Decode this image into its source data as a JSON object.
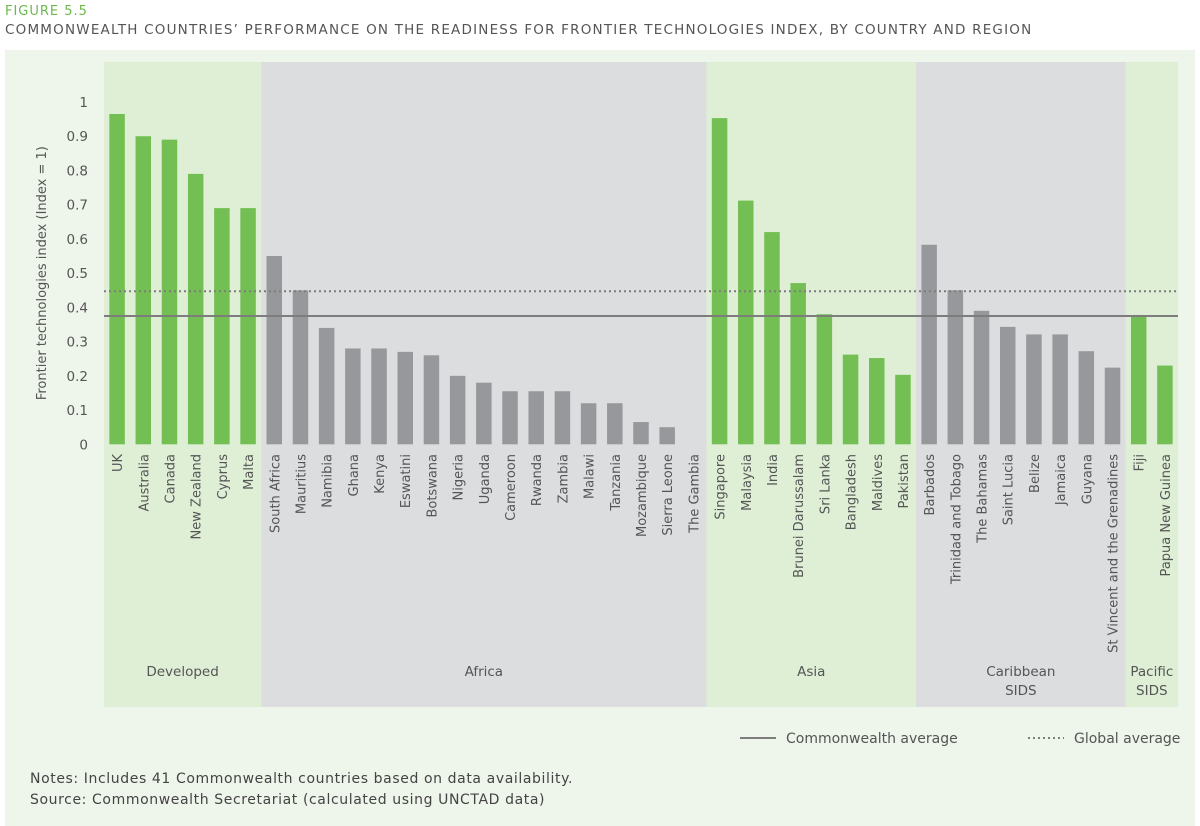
{
  "figure_label": "FIGURE 5.5",
  "title": "COMMONWEALTH COUNTRIES’ PERFORMANCE ON THE READINESS FOR FRONTIER TECHNOLOGIES INDEX, BY COUNTRY AND REGION",
  "notes": "Notes: Includes 41 Commonwealth countries based on data availability.",
  "source": "Source: Commonwealth Secretariat (calculated using UNCTAD data)",
  "colors": {
    "highlight_bar": "#74bf54",
    "other_bar": "#97989b",
    "green_band": "#deefd6",
    "grey_band": "#dcdddf",
    "average_line": "#7d7d7d"
  },
  "chart_data": {
    "type": "bar",
    "ylabel": "Frontier technologies index (Index = 1)",
    "ylim": [
      0,
      1
    ],
    "yticks": [
      "0",
      "0.1",
      "0.2",
      "0.3",
      "0.4",
      "0.5",
      "0.6",
      "0.7",
      "0.8",
      "0.9",
      "1"
    ],
    "grid": false,
    "legend_placement": "bottom-right",
    "regions": [
      {
        "name": "Developed",
        "band": "green",
        "bar_color": "green",
        "categories": [
          "UK",
          "Australia",
          "Canada",
          "New Zealand",
          "Cyprus",
          "Malta"
        ],
        "values": [
          0.965,
          0.9,
          0.89,
          0.79,
          0.69,
          0.69
        ]
      },
      {
        "name": "Africa",
        "band": "grey",
        "bar_color": "grey",
        "categories": [
          "South Africa",
          "Mauritius",
          "Namibia",
          "Ghana",
          "Kenya",
          "Eswatini",
          "Botswana",
          "Nigeria",
          "Uganda",
          "Cameroon",
          "Rwanda",
          "Zambia",
          "Malawi",
          "Tanzania",
          "Mozambique",
          "Sierra Leone",
          "The Gambia"
        ],
        "values": [
          0.55,
          0.45,
          0.34,
          0.28,
          0.28,
          0.27,
          0.26,
          0.2,
          0.18,
          0.155,
          0.155,
          0.155,
          0.12,
          0.12,
          0.065,
          0.05,
          0
        ]
      },
      {
        "name": "Asia",
        "band": "green",
        "bar_color": "green",
        "categories": [
          "Singapore",
          "Malaysia",
          "India",
          "Brunei Darussalam",
          "Sri Lanka",
          "Bangladesh",
          "Maldives",
          "Pakistan"
        ],
        "values": [
          0.953,
          0.712,
          0.62,
          0.471,
          0.38,
          0.262,
          0.252,
          0.203
        ]
      },
      {
        "name": "Caribbean SIDS",
        "label_lines": [
          "Caribbean",
          "SIDS"
        ],
        "band": "grey",
        "bar_color": "grey",
        "categories": [
          "Barbados",
          "Trinidad and Tobago",
          "The Bahamas",
          "Saint Lucia",
          "Belize",
          "Jamaica",
          "Guyana",
          "St Vincent and the Grenadines"
        ],
        "values": [
          0.583,
          0.45,
          0.39,
          0.343,
          0.321,
          0.321,
          0.272,
          0.224
        ]
      },
      {
        "name": "Pacific SIDS",
        "label_lines": [
          "Pacific",
          "SIDS"
        ],
        "band": "green",
        "bar_color": "green",
        "categories": [
          "Fiji",
          "Papua New Guinea"
        ],
        "values": [
          0.375,
          0.23
        ]
      }
    ],
    "reference_lines": [
      {
        "name": "Commonwealth average",
        "value": 0.375,
        "style": "solid"
      },
      {
        "name": "Global average",
        "value": 0.447,
        "style": "dotted"
      }
    ]
  }
}
